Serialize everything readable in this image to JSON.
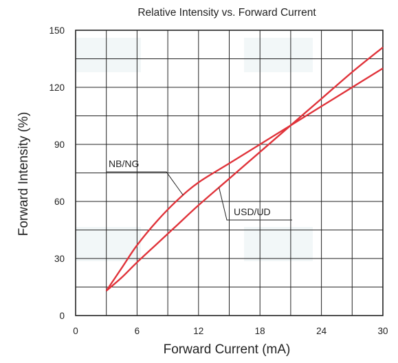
{
  "chart_data": {
    "type": "line",
    "title": "Relative Intensity vs. Forward Current",
    "xlabel": "Forward Current (mA)",
    "ylabel": "Forward Intensity (%)",
    "xlim": [
      0,
      30
    ],
    "ylim": [
      0,
      150
    ],
    "x_ticks": [
      0,
      6,
      12,
      18,
      24,
      30
    ],
    "y_ticks": [
      0,
      30,
      60,
      90,
      120,
      150
    ],
    "grid": true,
    "line_color": "#e0333a",
    "series": [
      {
        "name": "NB/NG",
        "x": [
          3,
          4.5,
          6,
          8,
          10,
          12,
          15,
          18,
          21,
          24,
          27,
          30
        ],
        "y": [
          13,
          25,
          37,
          50,
          61,
          70,
          80,
          90,
          100,
          110,
          120,
          130
        ]
      },
      {
        "name": "USD/UD",
        "x": [
          3,
          4.5,
          6,
          8,
          10,
          12,
          15,
          18,
          21,
          24,
          27,
          30
        ],
        "y": [
          13,
          20,
          28,
          38,
          48,
          58,
          72,
          86,
          100,
          114,
          128,
          141
        ]
      }
    ],
    "annotations": [
      {
        "text": "NB/NG",
        "series": "NB/NG",
        "at_x": 10.5
      },
      {
        "text": "USD/UD",
        "series": "USD/UD",
        "at_x": 14
      }
    ]
  }
}
